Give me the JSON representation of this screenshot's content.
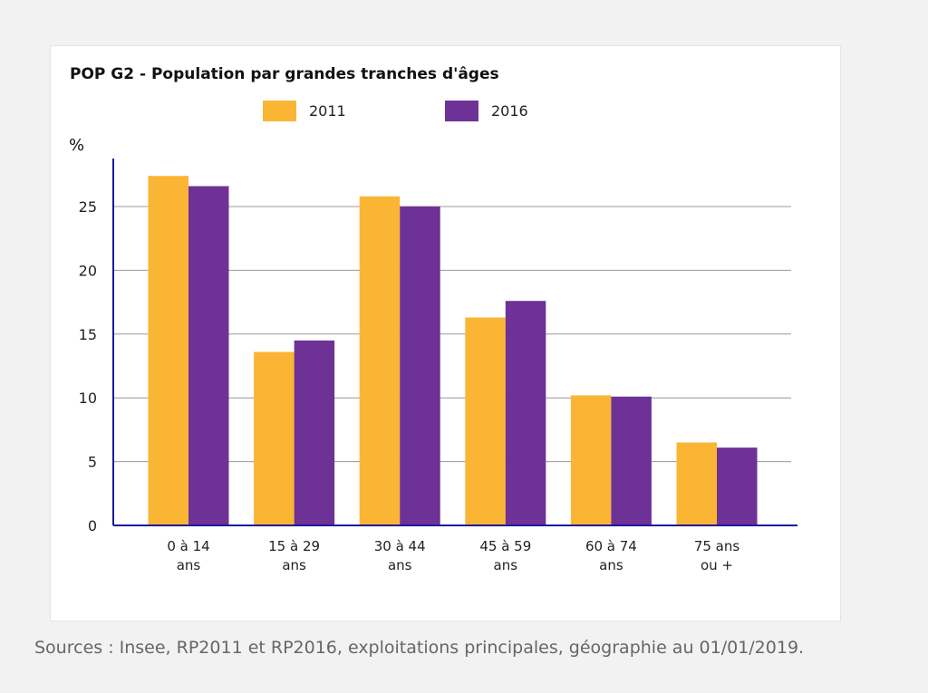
{
  "chart_data": {
    "type": "bar",
    "title": "POP G2 - Population par grandes tranches d'âges",
    "ylabel": "%",
    "xlabel": "",
    "ylim": [
      0,
      28.5
    ],
    "yticks": [
      0,
      5,
      10,
      15,
      20,
      25
    ],
    "grid": true,
    "legend_position": "top-center",
    "categories": [
      [
        "0 à 14",
        "ans"
      ],
      [
        "15 à 29",
        "ans"
      ],
      [
        "30 à 44",
        "ans"
      ],
      [
        "45 à 59",
        "ans"
      ],
      [
        "60 à 74",
        "ans"
      ],
      [
        "75 ans",
        "ou +"
      ]
    ],
    "series": [
      {
        "name": "2011",
        "color": "#fbb535",
        "values": [
          27.4,
          13.6,
          25.8,
          16.3,
          10.2,
          6.5
        ]
      },
      {
        "name": "2016",
        "color": "#6e3196",
        "values": [
          26.6,
          14.5,
          25.0,
          17.6,
          10.1,
          6.1
        ]
      }
    ]
  },
  "source": "Sources : Insee, RP2011 et RP2016, exploitations principales, géographie au 01/01/2019."
}
